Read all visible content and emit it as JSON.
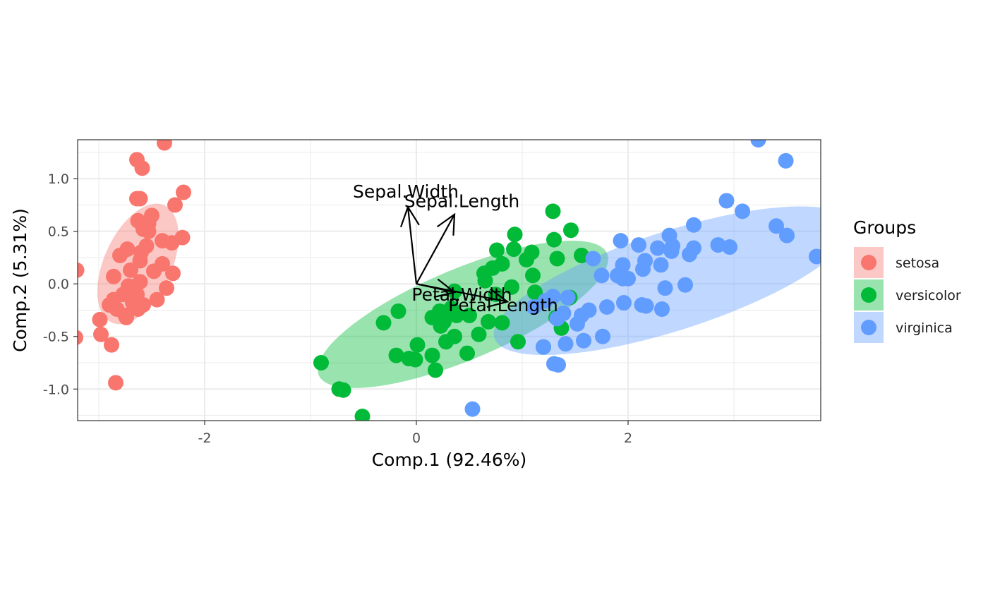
{
  "chart_data": {
    "type": "scatter",
    "title": "",
    "xlabel": "Comp.1 (92.46%)",
    "ylabel": "Comp.2 (5.31%)",
    "xlim": [
      -3.2,
      3.82
    ],
    "ylim": [
      -1.3,
      1.37
    ],
    "x_ticks": [
      -2,
      0,
      2
    ],
    "x_tick_labels": [
      "-2",
      "0",
      "2"
    ],
    "y_ticks": [
      -1.0,
      -0.5,
      0.0,
      0.5,
      1.0
    ],
    "y_tick_labels": [
      "-1.0",
      "-0.5",
      "0.0",
      "0.5",
      "1.0"
    ],
    "grid": true,
    "theme": "bw",
    "legend": {
      "title": "Groups",
      "position": "right"
    },
    "series": [
      {
        "name": "setosa",
        "color": "#F8766D",
        "ellipse_fill": "#F8766D",
        "points": [
          [
            -2.38,
            1.34
          ],
          [
            -2.64,
            1.18
          ],
          [
            -2.59,
            1.1
          ],
          [
            -2.2,
            0.87
          ],
          [
            -2.64,
            0.81
          ],
          [
            -2.61,
            0.81
          ],
          [
            -2.28,
            0.75
          ],
          [
            -2.5,
            0.65
          ],
          [
            -2.63,
            0.6
          ],
          [
            -2.53,
            0.57
          ],
          [
            -2.58,
            0.52
          ],
          [
            -2.53,
            0.5
          ],
          [
            -2.21,
            0.44
          ],
          [
            -2.4,
            0.41
          ],
          [
            -2.31,
            0.39
          ],
          [
            -2.55,
            0.36
          ],
          [
            -2.6,
            0.3
          ],
          [
            -2.73,
            0.33
          ],
          [
            -2.8,
            0.27
          ],
          [
            -2.61,
            0.22
          ],
          [
            -2.4,
            0.19
          ],
          [
            -2.7,
            0.13
          ],
          [
            -2.48,
            0.12
          ],
          [
            -2.3,
            0.1
          ],
          [
            -2.86,
            0.07
          ],
          [
            -2.61,
            0.02
          ],
          [
            -2.36,
            -0.04
          ],
          [
            -2.72,
            -0.02
          ],
          [
            -2.64,
            -0.1
          ],
          [
            -2.77,
            -0.1
          ],
          [
            -2.86,
            -0.15
          ],
          [
            -2.45,
            -0.15
          ],
          [
            -2.68,
            -0.18
          ],
          [
            -2.58,
            -0.2
          ],
          [
            -2.83,
            -0.24
          ],
          [
            -2.63,
            -0.24
          ],
          [
            -2.75,
            -0.3
          ],
          [
            -2.74,
            -0.32
          ],
          [
            -2.99,
            -0.34
          ],
          [
            -2.98,
            -0.48
          ],
          [
            -2.88,
            -0.58
          ],
          [
            -2.84,
            -0.94
          ],
          [
            -3.21,
            0.13
          ],
          [
            -3.22,
            -0.51
          ],
          [
            -2.9,
            -0.2
          ]
        ]
      },
      {
        "name": "versicolor",
        "color": "#00BA38",
        "ellipse_fill": "#00BA38",
        "points": [
          [
            1.29,
            0.69
          ],
          [
            1.46,
            0.51
          ],
          [
            0.93,
            0.47
          ],
          [
            1.3,
            0.42
          ],
          [
            0.92,
            0.33
          ],
          [
            1.09,
            0.3
          ],
          [
            0.76,
            0.32
          ],
          [
            1.04,
            0.23
          ],
          [
            1.33,
            0.24
          ],
          [
            0.81,
            0.19
          ],
          [
            0.72,
            0.15
          ],
          [
            0.64,
            0.1
          ],
          [
            1.1,
            0.08
          ],
          [
            0.65,
            0.03
          ],
          [
            0.36,
            -0.07
          ],
          [
            0.9,
            -0.03
          ],
          [
            1.12,
            -0.08
          ],
          [
            0.75,
            -0.1
          ],
          [
            0.33,
            -0.23
          ],
          [
            0.22,
            -0.26
          ],
          [
            0.38,
            -0.3
          ],
          [
            -0.17,
            -0.26
          ],
          [
            0.27,
            -0.27
          ],
          [
            0.15,
            -0.32
          ],
          [
            0.26,
            -0.36
          ],
          [
            -0.31,
            -0.37
          ],
          [
            0.68,
            -0.36
          ],
          [
            0.81,
            -0.37
          ],
          [
            0.23,
            -0.4
          ],
          [
            0.59,
            -0.48
          ],
          [
            0.36,
            -0.5
          ],
          [
            0.28,
            -0.55
          ],
          [
            0.48,
            -0.66
          ],
          [
            0.01,
            -0.58
          ],
          [
            -0.19,
            -0.68
          ],
          [
            0.15,
            -0.68
          ],
          [
            -0.07,
            -0.71
          ],
          [
            -0.01,
            -0.72
          ],
          [
            0.18,
            -0.82
          ],
          [
            -0.9,
            -0.75
          ],
          [
            -0.73,
            -1.0
          ],
          [
            -0.69,
            -1.01
          ],
          [
            -0.51,
            -1.26
          ],
          [
            1.37,
            -0.42
          ],
          [
            1.32,
            -0.32
          ],
          [
            0.96,
            -0.55
          ],
          [
            0.5,
            -0.3
          ],
          [
            1.56,
            0.27
          ],
          [
            1.2,
            -0.6
          ],
          [
            1.45,
            -0.13
          ]
        ]
      },
      {
        "name": "virginica",
        "color": "#619CFF",
        "ellipse_fill": "#619CFF",
        "points": [
          [
            3.23,
            1.37
          ],
          [
            3.49,
            1.17
          ],
          [
            2.93,
            0.79
          ],
          [
            3.08,
            0.69
          ],
          [
            2.62,
            0.56
          ],
          [
            3.4,
            0.55
          ],
          [
            3.5,
            0.46
          ],
          [
            2.39,
            0.46
          ],
          [
            1.93,
            0.41
          ],
          [
            2.1,
            0.37
          ],
          [
            2.42,
            0.36
          ],
          [
            2.28,
            0.34
          ],
          [
            2.62,
            0.34
          ],
          [
            2.85,
            0.37
          ],
          [
            2.96,
            0.35
          ],
          [
            2.58,
            0.28
          ],
          [
            2.41,
            0.31
          ],
          [
            2.16,
            0.22
          ],
          [
            3.78,
            0.26
          ],
          [
            1.67,
            0.24
          ],
          [
            1.95,
            0.18
          ],
          [
            2.31,
            0.18
          ],
          [
            2.14,
            0.14
          ],
          [
            1.75,
            0.08
          ],
          [
            1.9,
            0.08
          ],
          [
            1.95,
            0.05
          ],
          [
            2.54,
            -0.01
          ],
          [
            2.35,
            -0.04
          ],
          [
            1.43,
            -0.13
          ],
          [
            1.29,
            -0.12
          ],
          [
            1.96,
            -0.18
          ],
          [
            1.8,
            -0.22
          ],
          [
            2.13,
            -0.2
          ],
          [
            2.17,
            -0.21
          ],
          [
            2.32,
            -0.24
          ],
          [
            1.52,
            -0.38
          ],
          [
            1.33,
            -0.33
          ],
          [
            1.76,
            -0.5
          ],
          [
            1.58,
            -0.54
          ],
          [
            1.41,
            -0.57
          ],
          [
            1.2,
            -0.6
          ],
          [
            1.3,
            -0.76
          ],
          [
            1.34,
            -0.77
          ],
          [
            0.53,
            -1.19
          ],
          [
            1.39,
            -0.28
          ],
          [
            1.22,
            -0.16
          ],
          [
            1.63,
            -0.25
          ],
          [
            1.56,
            -0.3
          ],
          [
            1.11,
            -0.22
          ],
          [
            2.0,
            0.05
          ]
        ]
      }
    ],
    "ellipses": [
      {
        "group": "setosa",
        "cx": -2.63,
        "cy": 0.19,
        "a": 0.61,
        "b": 0.32,
        "angle_deg": 66
      },
      {
        "group": "versicolor",
        "cx": 0.44,
        "cy": -0.29,
        "a": 1.48,
        "b": 0.43,
        "angle_deg": 23
      },
      {
        "group": "virginica",
        "cx": 2.42,
        "cy": 0.03,
        "a": 1.77,
        "b": 0.47,
        "angle_deg": 18
      }
    ],
    "loadings": [
      {
        "label": "Sepal.Length",
        "x": 0.36,
        "y": 0.66
      },
      {
        "label": "Sepal.Width",
        "x": -0.08,
        "y": 0.73
      },
      {
        "label": "Petal.Length",
        "x": 0.86,
        "y": -0.17
      },
      {
        "label": "Petal.Width",
        "x": 0.36,
        "y": -0.08
      }
    ],
    "loading_label_positions": [
      {
        "label": "Sepal.Length",
        "x": 0.43,
        "y": 0.79
      },
      {
        "label": "Sepal.Width",
        "x": -0.1,
        "y": 0.88
      },
      {
        "label": "Petal.Length",
        "x": 0.82,
        "y": -0.2
      },
      {
        "label": "Petal.Width",
        "x": 0.43,
        "y": -0.1
      }
    ]
  }
}
